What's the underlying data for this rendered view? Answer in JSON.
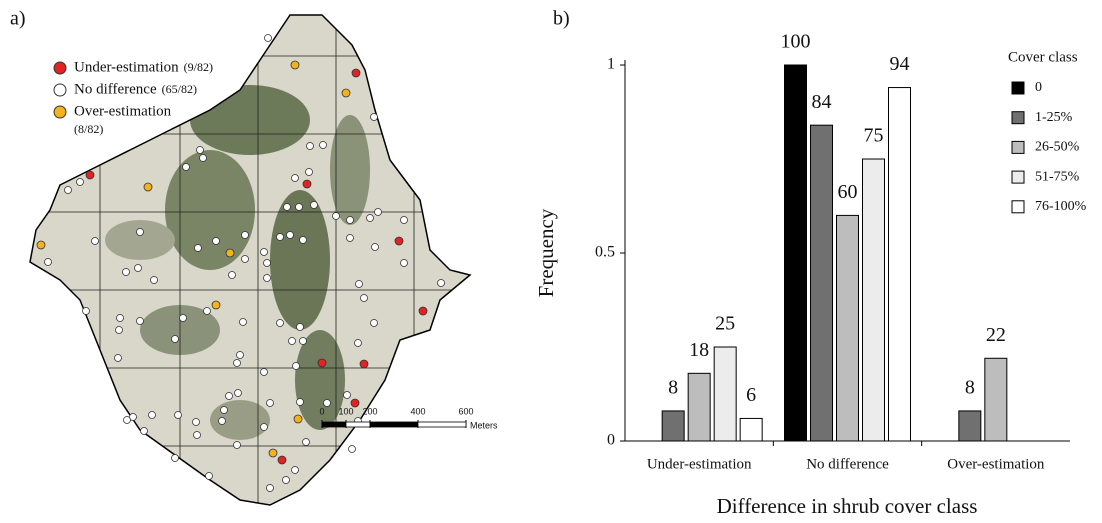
{
  "map": {
    "label": "a)",
    "legend": [
      {
        "name": "Under-estimation",
        "count": "(9/82)",
        "color": "#e02424"
      },
      {
        "name": "No difference",
        "count": "(65/82)",
        "color": "#ffffff"
      },
      {
        "name": "Over-estimation",
        "count": "(8/82)",
        "color": "#f2b31b"
      }
    ],
    "scale": {
      "ticks": [
        0,
        100,
        200,
        400,
        600
      ],
      "unit": "Meters"
    }
  },
  "chart_data": {
    "type": "bar",
    "label": "b)",
    "xlabel": "Difference in shrub cover class",
    "ylabel": "Frequency",
    "categories": [
      "Under-estimation",
      "No difference",
      "Over-estimation"
    ],
    "legend_title": "Cover class",
    "legend": "top-right",
    "ylim": [
      0,
      1
    ],
    "yticks": [
      0,
      0.5,
      1
    ],
    "series": [
      {
        "name": "0",
        "color": "#000000",
        "values": [
          null,
          1,
          null
        ],
        "value_labels": [
          null,
          "100",
          null
        ]
      },
      {
        "name": "1-25%",
        "color": "#707070",
        "values": [
          0.08,
          0.84,
          0.08
        ],
        "value_labels": [
          "8",
          "84",
          "8"
        ]
      },
      {
        "name": "26-50%",
        "color": "#bdbdbd",
        "values": [
          0.18,
          0.6,
          0.22
        ],
        "value_labels": [
          "18",
          "60",
          "22"
        ]
      },
      {
        "name": "51-75%",
        "color": "#ececec",
        "values": [
          0.25,
          0.75,
          null
        ],
        "value_labels": [
          "25",
          "75",
          null
        ]
      },
      {
        "name": "76-100%",
        "color": "#ffffff",
        "values": [
          0.06,
          0.94,
          null
        ],
        "value_labels": [
          "6",
          "94",
          null
        ]
      }
    ]
  }
}
